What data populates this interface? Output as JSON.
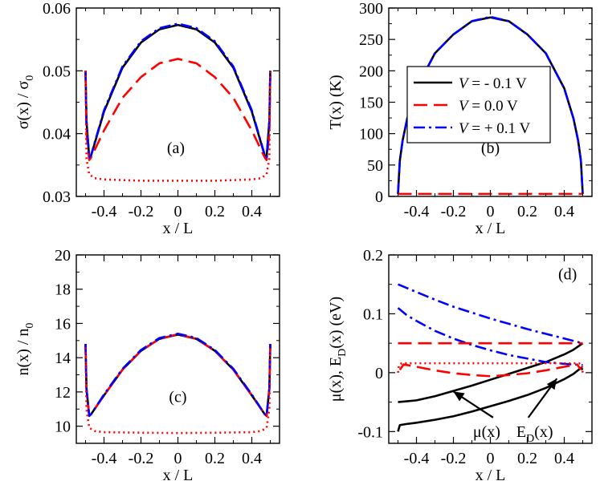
{
  "chart_data": [
    {
      "type": "line",
      "panel_tag": "(a)",
      "xlabel": "x / L",
      "ylabel": "σ(x) / σ",
      "ylabel_sub": "0",
      "xlim": [
        -0.55,
        0.55
      ],
      "ylim": [
        0.03,
        0.06
      ],
      "xticks": [
        -0.4,
        -0.2,
        0,
        0.2,
        0.4
      ],
      "xticklabels": [
        "-0.4",
        "-0.2",
        "0",
        "0.2",
        "0.4"
      ],
      "yticks": [
        0.03,
        0.04,
        0.05,
        0.06
      ],
      "yticklabels": [
        "0.03",
        "0.04",
        "0.05",
        "0.06"
      ],
      "series": [
        {
          "color": "#000000",
          "dash": "solid",
          "x": [
            -0.5,
            -0.495,
            -0.48,
            -0.47,
            -0.4,
            -0.3,
            -0.2,
            -0.1,
            0,
            0.1,
            0.2,
            0.3,
            0.4,
            0.47,
            0.48,
            0.495,
            0.5
          ],
          "y": [
            0.05,
            0.042,
            0.0362,
            0.0365,
            0.0435,
            0.0505,
            0.0545,
            0.0566,
            0.0573,
            0.0566,
            0.0545,
            0.0505,
            0.0435,
            0.0365,
            0.0362,
            0.042,
            0.05
          ]
        },
        {
          "color": "#ff0000",
          "dash": "dashed",
          "x": [
            -0.5,
            -0.495,
            -0.48,
            -0.47,
            -0.4,
            -0.3,
            -0.2,
            -0.1,
            0,
            0.1,
            0.2,
            0.3,
            0.4,
            0.47,
            0.48,
            0.495,
            0.5
          ],
          "y": [
            0.05,
            0.04,
            0.0358,
            0.0362,
            0.0405,
            0.0457,
            0.049,
            0.0512,
            0.0519,
            0.0512,
            0.049,
            0.0457,
            0.0405,
            0.0362,
            0.0358,
            0.04,
            0.05
          ]
        },
        {
          "color": "#0000ff",
          "dash": "dashdot",
          "x": [
            -0.5,
            -0.495,
            -0.48,
            -0.47,
            -0.4,
            -0.3,
            -0.2,
            -0.1,
            0,
            0.1,
            0.2,
            0.3,
            0.4,
            0.47,
            0.48,
            0.495,
            0.5
          ],
          "y": [
            0.05,
            0.042,
            0.0362,
            0.0366,
            0.0437,
            0.0507,
            0.0547,
            0.0568,
            0.0575,
            0.0568,
            0.0547,
            0.0507,
            0.0437,
            0.0366,
            0.0362,
            0.042,
            0.05
          ]
        },
        {
          "color": "#ff0000",
          "dash": "dotted",
          "x": [
            -0.5,
            -0.495,
            -0.48,
            -0.45,
            -0.4,
            -0.2,
            0,
            0.2,
            0.4,
            0.45,
            0.48,
            0.495,
            0.5
          ],
          "y": [
            0.05,
            0.036,
            0.0335,
            0.0329,
            0.0327,
            0.0325,
            0.0325,
            0.0325,
            0.0327,
            0.0329,
            0.0335,
            0.036,
            0.05
          ]
        }
      ]
    },
    {
      "type": "line",
      "panel_tag": "(b)",
      "xlabel": "x / L",
      "ylabel": "T(x) (K)",
      "xlim": [
        -0.55,
        0.55
      ],
      "ylim": [
        0,
        300
      ],
      "xticks": [
        -0.4,
        -0.2,
        0,
        0.2,
        0.4
      ],
      "xticklabels": [
        "-0.4",
        "-0.2",
        "0",
        "0.2",
        "0.4"
      ],
      "yticks": [
        0,
        50,
        100,
        150,
        200,
        250,
        300
      ],
      "yticklabels": [
        "0",
        "50",
        "100",
        "150",
        "200",
        "250",
        "300"
      ],
      "legend": {
        "position": "center-right",
        "entries": [
          {
            "label": "V",
            "value": " = - 0.1 V",
            "color": "#000000",
            "dash": "solid"
          },
          {
            "label": "V",
            "value": " = 0.0 V",
            "color": "#ff0000",
            "dash": "dashed"
          },
          {
            "label": "V",
            "value": " = + 0.1 V",
            "color": "#0000ff",
            "dash": "dashdot"
          }
        ]
      },
      "series": [
        {
          "color": "#000000",
          "dash": "solid",
          "x": [
            -0.5,
            -0.49,
            -0.475,
            -0.45,
            -0.4,
            -0.3,
            -0.2,
            -0.1,
            0,
            0.1,
            0.2,
            0.3,
            0.4,
            0.45,
            0.475,
            0.49,
            0.5
          ],
          "y": [
            4,
            57,
            89,
            124,
            172,
            228,
            258,
            279,
            285,
            279,
            258,
            228,
            172,
            124,
            89,
            57,
            4
          ]
        },
        {
          "color": "#0000ff",
          "dash": "dashdot",
          "x": [
            -0.5,
            -0.49,
            -0.475,
            -0.45,
            -0.4,
            -0.3,
            -0.2,
            -0.1,
            0,
            0.1,
            0.2,
            0.3,
            0.4,
            0.45,
            0.475,
            0.49,
            0.5
          ],
          "y": [
            4,
            57,
            89,
            124,
            172,
            228,
            258,
            279,
            286,
            279,
            258,
            228,
            172,
            124,
            89,
            57,
            4
          ]
        },
        {
          "color": "#ff0000",
          "dash": "dashed",
          "x": [
            -0.5,
            0.5
          ],
          "y": [
            4,
            4
          ]
        }
      ]
    },
    {
      "type": "line",
      "panel_tag": "(c)",
      "xlabel": "x / L",
      "ylabel": "n(x) / n",
      "ylabel_sub": "0",
      "xlim": [
        -0.55,
        0.55
      ],
      "ylim": [
        9,
        20
      ],
      "xticks": [
        -0.4,
        -0.2,
        0,
        0.2,
        0.4
      ],
      "xticklabels": [
        "-0.4",
        "-0.2",
        "0",
        "0.2",
        "0.4"
      ],
      "yticks": [
        10,
        12,
        14,
        16,
        18,
        20
      ],
      "yticklabels": [
        "10",
        "12",
        "14",
        "16",
        "18",
        "20"
      ],
      "series": [
        {
          "color": "#000000",
          "dash": "solid",
          "x": [
            -0.5,
            -0.495,
            -0.48,
            -0.47,
            -0.4,
            -0.3,
            -0.2,
            -0.1,
            0,
            0.1,
            0.2,
            0.3,
            0.4,
            0.47,
            0.48,
            0.495,
            0.5
          ],
          "y": [
            14.8,
            12.2,
            10.6,
            10.7,
            11.8,
            13.3,
            14.4,
            15.1,
            15.35,
            15.1,
            14.4,
            13.3,
            11.8,
            10.7,
            10.6,
            12.2,
            14.8
          ]
        },
        {
          "color": "#ff0000",
          "dash": "dashed",
          "x": [
            -0.5,
            -0.495,
            -0.48,
            -0.47,
            -0.4,
            -0.3,
            -0.2,
            -0.1,
            0,
            0.1,
            0.2,
            0.3,
            0.4,
            0.47,
            0.48,
            0.495,
            0.5
          ],
          "y": [
            14.8,
            12.2,
            10.6,
            10.7,
            11.8,
            13.3,
            14.4,
            15.1,
            15.37,
            15.1,
            14.4,
            13.3,
            11.8,
            10.7,
            10.6,
            12.2,
            14.8
          ]
        },
        {
          "color": "#0000ff",
          "dash": "dashdot",
          "x": [
            -0.5,
            -0.495,
            -0.48,
            -0.47,
            -0.4,
            -0.3,
            -0.2,
            -0.1,
            0,
            0.1,
            0.2,
            0.3,
            0.4,
            0.47,
            0.48,
            0.495,
            0.5
          ],
          "y": [
            14.8,
            12.2,
            10.6,
            10.7,
            11.85,
            13.35,
            14.45,
            15.15,
            15.4,
            15.15,
            14.45,
            13.35,
            11.85,
            10.7,
            10.6,
            12.2,
            14.8
          ]
        },
        {
          "color": "#ff0000",
          "dash": "dotted",
          "x": [
            -0.5,
            -0.495,
            -0.48,
            -0.45,
            -0.4,
            -0.2,
            0,
            0.2,
            0.4,
            0.45,
            0.48,
            0.495,
            0.5
          ],
          "y": [
            14.6,
            11.0,
            9.9,
            9.72,
            9.65,
            9.62,
            9.6,
            9.62,
            9.65,
            9.72,
            9.9,
            11.0,
            14.6
          ]
        }
      ]
    },
    {
      "type": "line",
      "panel_tag": "(d)",
      "xlabel": "x / L",
      "ylabel": "μ(x), E",
      "ylabel_sub": "D",
      "ylabel_tail": "(x) (eV)",
      "xlim": [
        -0.55,
        0.55
      ],
      "ylim": [
        -0.12,
        0.2
      ],
      "xticks": [
        -0.4,
        -0.2,
        0,
        0.2,
        0.4
      ],
      "xticklabels": [
        "-0.4",
        "-0.2",
        "0",
        "0.2",
        "0.4"
      ],
      "yticks": [
        -0.1,
        0,
        0.1,
        0.2
      ],
      "yticklabels": [
        "-0.1",
        "0",
        "0.1",
        "0.2"
      ],
      "annotations": [
        {
          "text": "μ(x)",
          "sub": "",
          "tail": "",
          "x": -0.2,
          "y": -0.032,
          "tx": -0.02,
          "ty": -0.098
        },
        {
          "text": "E",
          "sub": "D",
          "tail": "(x)",
          "x": 0.36,
          "y": -0.01,
          "tx": 0.24,
          "ty": -0.098
        }
      ],
      "series": [
        {
          "color": "#000000",
          "dash": "solid",
          "x": [
            -0.5,
            -0.4,
            -0.3,
            -0.2,
            -0.1,
            0,
            0.1,
            0.2,
            0.3,
            0.4,
            0.45,
            0.5
          ],
          "y": [
            -0.05,
            -0.047,
            -0.04,
            -0.031,
            -0.022,
            -0.012,
            -0.002,
            0.008,
            0.018,
            0.031,
            0.039,
            0.05
          ]
        },
        {
          "color": "#000000",
          "dash": "solid",
          "x": [
            -0.5,
            -0.49,
            -0.45,
            -0.4,
            -0.3,
            -0.2,
            -0.1,
            0,
            0.1,
            0.2,
            0.3,
            0.4,
            0.45,
            0.49,
            0.5
          ],
          "y": [
            -0.1,
            -0.089,
            -0.087,
            -0.085,
            -0.08,
            -0.074,
            -0.066,
            -0.057,
            -0.048,
            -0.038,
            -0.026,
            -0.011,
            -0.002,
            0.008,
            0.005
          ]
        },
        {
          "color": "#0000ff",
          "dash": "dashdot",
          "x": [
            -0.5,
            -0.4,
            -0.3,
            -0.2,
            -0.1,
            0,
            0.1,
            0.2,
            0.3,
            0.4,
            0.5
          ],
          "y": [
            0.15,
            0.137,
            0.124,
            0.112,
            0.102,
            0.092,
            0.083,
            0.074,
            0.066,
            0.058,
            0.05
          ]
        },
        {
          "color": "#0000ff",
          "dash": "dashdot",
          "x": [
            -0.5,
            -0.45,
            -0.4,
            -0.3,
            -0.2,
            -0.1,
            0,
            0.1,
            0.2,
            0.3,
            0.4,
            0.5
          ],
          "y": [
            0.11,
            0.097,
            0.088,
            0.071,
            0.058,
            0.047,
            0.038,
            0.03,
            0.024,
            0.018,
            0.015,
            0.013
          ]
        },
        {
          "color": "#ff0000",
          "dash": "dashed",
          "x": [
            -0.5,
            0.5
          ],
          "y": [
            0.05,
            0.05
          ]
        },
        {
          "color": "#ff0000",
          "dash": "dashed",
          "x": [
            -0.49,
            -0.47,
            -0.4,
            -0.3,
            -0.2,
            -0.1,
            0,
            0.1,
            0.2,
            0.3,
            0.4,
            0.47,
            0.49
          ],
          "y": [
            0.005,
            0.014,
            0.01,
            0.004,
            -0.001,
            -0.004,
            -0.006,
            -0.004,
            -0.001,
            0.004,
            0.01,
            0.014,
            0.005
          ]
        },
        {
          "color": "#ff0000",
          "dash": "dotted",
          "x": [
            -0.5,
            -0.495,
            -0.48,
            -0.4,
            -0.2,
            0,
            0.2,
            0.4,
            0.48,
            0.495,
            0.5
          ],
          "y": [
            0.0,
            0.013,
            0.016,
            0.016,
            0.016,
            0.016,
            0.016,
            0.016,
            0.016,
            0.013,
            0.0
          ]
        }
      ]
    }
  ]
}
